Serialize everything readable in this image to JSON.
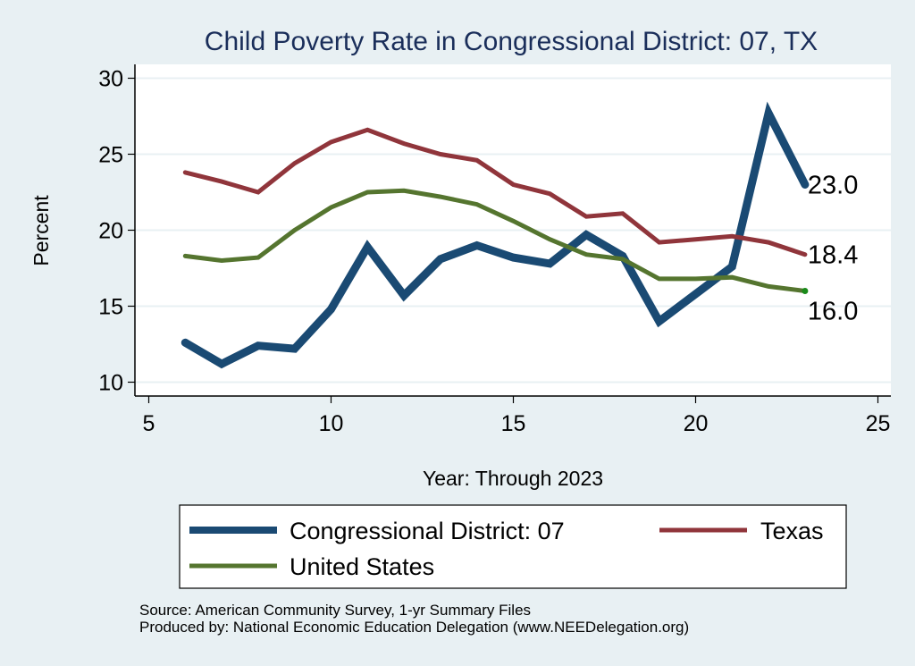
{
  "chart_data": {
    "type": "line",
    "title": "Child Poverty Rate in Congressional District:  07, TX",
    "xlabel": "Year: Through 2023",
    "ylabel": "Percent",
    "xlim": [
      4.5,
      25.3
    ],
    "ylim": [
      9.1,
      31.0
    ],
    "xticks": [
      5,
      10,
      15,
      20,
      25
    ],
    "yticks": [
      10,
      15,
      20,
      25,
      30
    ],
    "grid": "horizontal",
    "x": [
      6,
      7,
      8,
      9,
      10,
      11,
      12,
      13,
      14,
      15,
      16,
      17,
      18,
      19,
      20,
      21,
      22,
      23
    ],
    "series": [
      {
        "name": "Congressional District:  07",
        "color": "#1a4a73",
        "weight": "thick",
        "values": [
          12.6,
          11.2,
          12.4,
          12.2,
          14.8,
          18.9,
          15.7,
          18.1,
          19.0,
          18.2,
          17.8,
          19.7,
          18.3,
          14.0,
          15.8,
          17.6,
          27.7,
          23.0
        ],
        "end_label": "23.0"
      },
      {
        "name": "Texas",
        "color": "#90353b",
        "weight": "medium",
        "values": [
          23.8,
          23.2,
          22.5,
          24.4,
          25.8,
          26.6,
          25.7,
          25.0,
          24.6,
          23.0,
          22.4,
          20.9,
          21.1,
          19.2,
          19.4,
          19.6,
          19.2,
          18.4
        ],
        "end_label": "18.4"
      },
      {
        "name": "United States",
        "color": "#55752f",
        "weight": "medium",
        "values": [
          18.3,
          18.0,
          18.2,
          20.0,
          21.5,
          22.5,
          22.6,
          22.2,
          21.7,
          20.6,
          19.4,
          18.4,
          18.1,
          16.8,
          16.8,
          16.9,
          16.3,
          16.0
        ],
        "end_label": "16.0",
        "end_marker_color": "#1a8a1a"
      }
    ],
    "legend": {
      "placement": "bottom",
      "entries": [
        "Congressional District:  07",
        "Texas",
        "United States"
      ]
    },
    "notes": [
      "Source: American Community Survey, 1-yr Summary Files",
      "Produced by: National Economic Education Delegation (www.NEEDelegation.org)"
    ]
  },
  "colors": {
    "background": "#e8f0f3",
    "plot_background": "#ffffff",
    "gridline": "#e8f0f3",
    "title": "#1a2e5a"
  }
}
